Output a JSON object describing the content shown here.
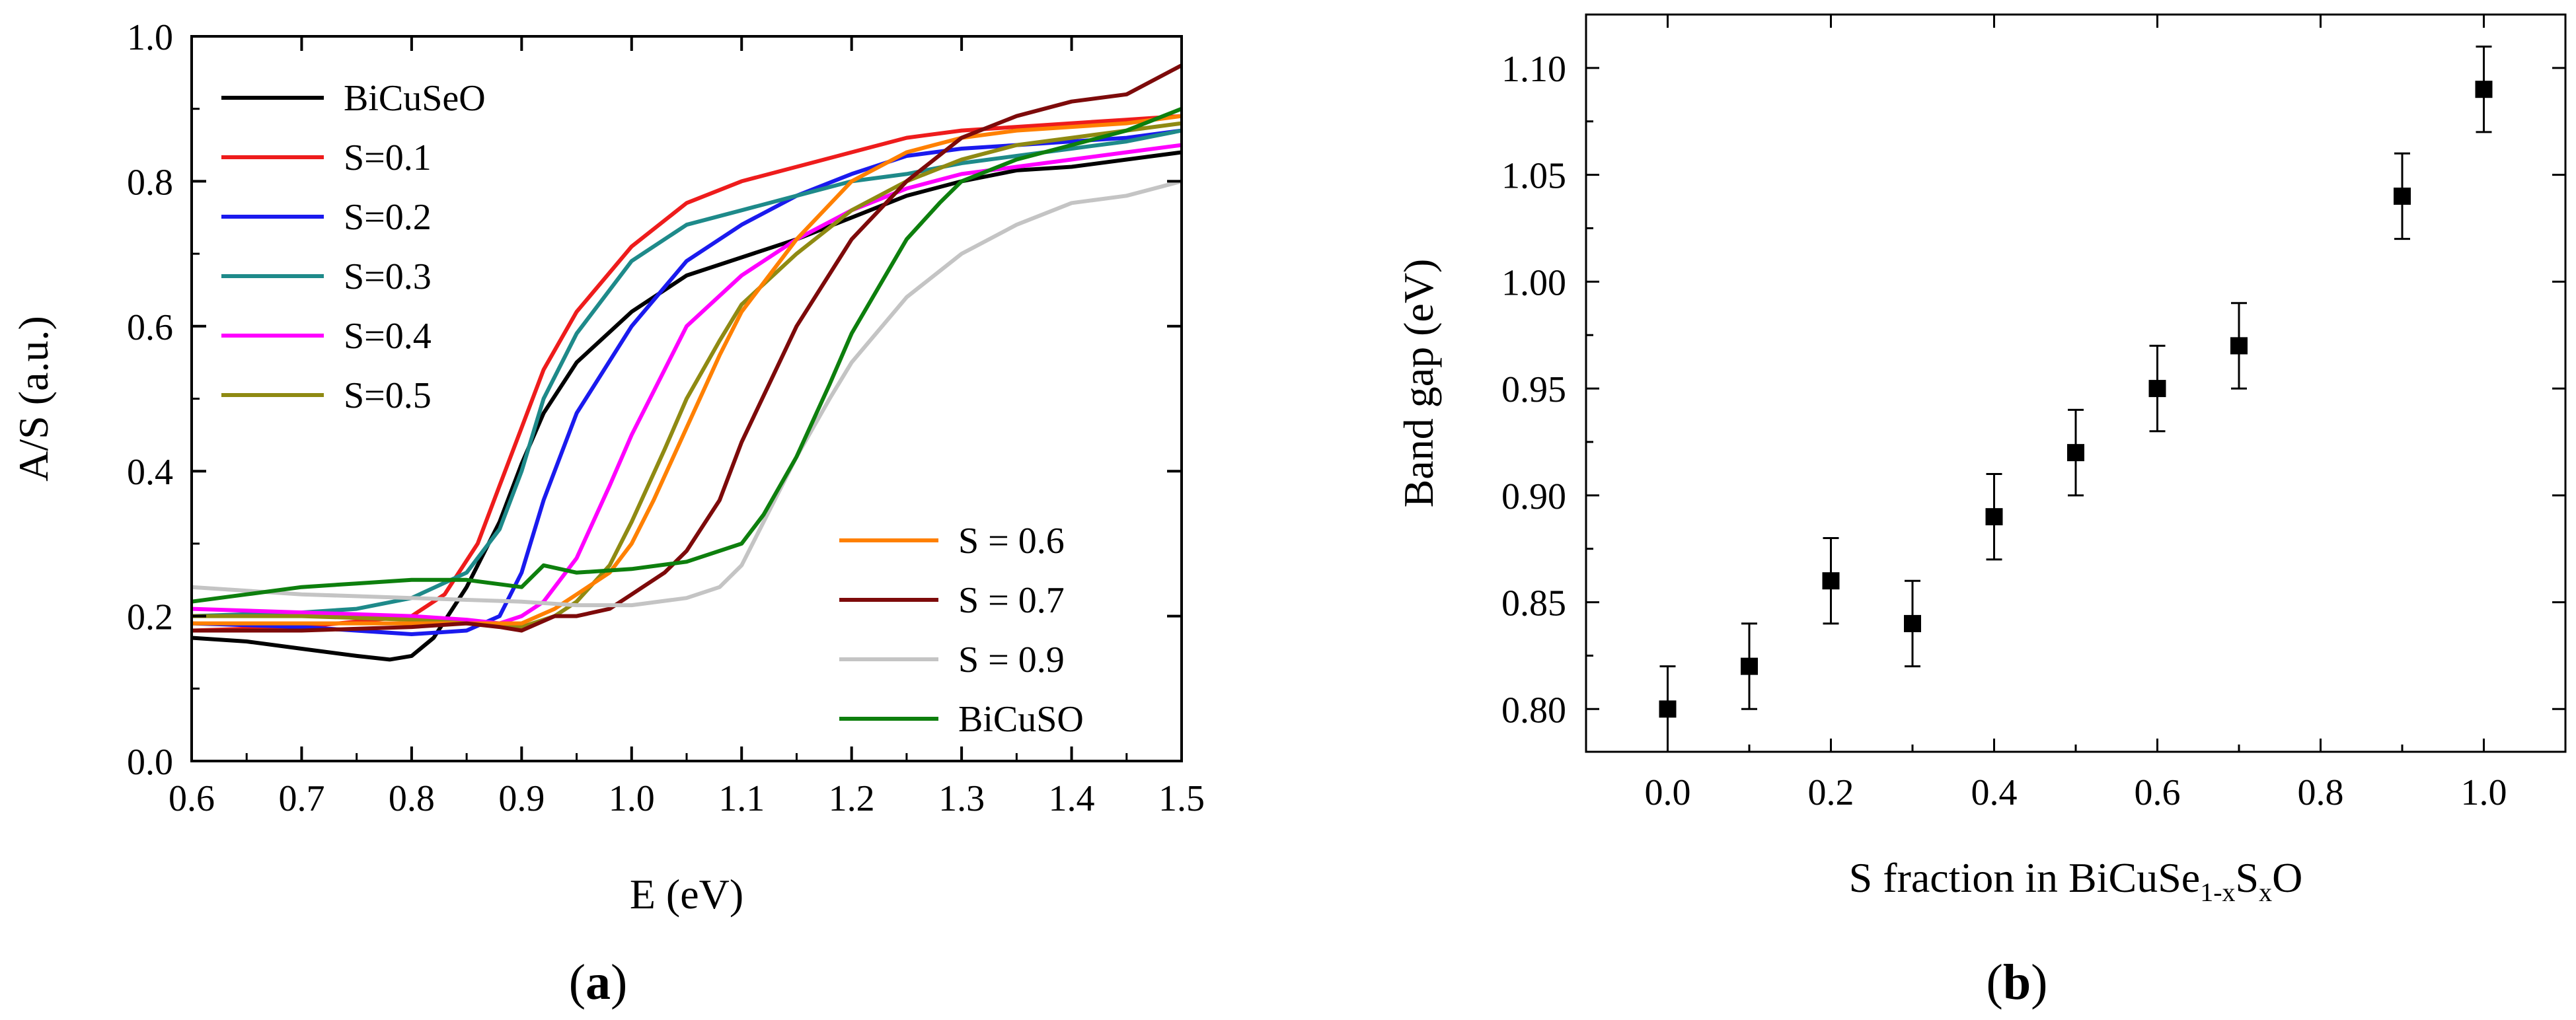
{
  "figure": {
    "panel_a_label": "a",
    "panel_b_label": "b"
  },
  "chart_data": [
    {
      "type": "line",
      "panel": "a",
      "xlabel": "E  (eV)",
      "ylabel": "A/S  (a.u.)",
      "xlim": [
        0.6,
        1.5
      ],
      "ylim": [
        0.0,
        1.0
      ],
      "xticks": [
        "0.6",
        "0.7",
        "0.8",
        "0.9",
        "1.0",
        "1.1",
        "1.2",
        "1.3",
        "1.4",
        "1.5"
      ],
      "yticks": [
        "0.0",
        "0.2",
        "0.4",
        "0.6",
        "0.8",
        "1.0"
      ],
      "legend_top_left": [
        "BiCuSeO",
        "S=0.1",
        "S=0.2",
        "S=0.3",
        "S=0.4",
        "S=0.5"
      ],
      "legend_bottom_right": [
        "S = 0.6",
        "S = 0.7",
        "S = 0.9",
        "BiCuSO"
      ],
      "series": [
        {
          "name": "BiCuSeO",
          "color": "#000000",
          "x": [
            0.6,
            0.65,
            0.7,
            0.75,
            0.78,
            0.8,
            0.82,
            0.85,
            0.88,
            0.9,
            0.92,
            0.95,
            1.0,
            1.05,
            1.1,
            1.15,
            1.2,
            1.25,
            1.3,
            1.35,
            1.4,
            1.45,
            1.5
          ],
          "y": [
            0.17,
            0.165,
            0.155,
            0.145,
            0.14,
            0.145,
            0.17,
            0.24,
            0.33,
            0.41,
            0.48,
            0.55,
            0.62,
            0.67,
            0.695,
            0.72,
            0.75,
            0.78,
            0.8,
            0.815,
            0.82,
            0.83,
            0.84
          ]
        },
        {
          "name": "S=0.1",
          "color": "#ee1c1c",
          "x": [
            0.6,
            0.7,
            0.8,
            0.83,
            0.86,
            0.88,
            0.9,
            0.92,
            0.95,
            1.0,
            1.05,
            1.1,
            1.15,
            1.2,
            1.25,
            1.3,
            1.35,
            1.4,
            1.45,
            1.5
          ],
          "y": [
            0.18,
            0.185,
            0.2,
            0.23,
            0.3,
            0.38,
            0.46,
            0.54,
            0.62,
            0.71,
            0.77,
            0.8,
            0.82,
            0.84,
            0.86,
            0.87,
            0.875,
            0.88,
            0.885,
            0.89
          ]
        },
        {
          "name": "S=0.2",
          "color": "#1a1aee",
          "x": [
            0.6,
            0.7,
            0.8,
            0.85,
            0.88,
            0.9,
            0.92,
            0.95,
            1.0,
            1.05,
            1.1,
            1.15,
            1.2,
            1.25,
            1.3,
            1.35,
            1.4,
            1.45,
            1.5
          ],
          "y": [
            0.19,
            0.185,
            0.175,
            0.18,
            0.2,
            0.26,
            0.36,
            0.48,
            0.6,
            0.69,
            0.74,
            0.78,
            0.81,
            0.835,
            0.845,
            0.85,
            0.855,
            0.86,
            0.87
          ]
        },
        {
          "name": "S=0.3",
          "color": "#1e8a8a",
          "x": [
            0.6,
            0.7,
            0.75,
            0.8,
            0.85,
            0.88,
            0.9,
            0.92,
            0.95,
            1.0,
            1.05,
            1.1,
            1.15,
            1.2,
            1.25,
            1.3,
            1.35,
            1.4,
            1.45,
            1.5
          ],
          "y": [
            0.2,
            0.205,
            0.21,
            0.225,
            0.26,
            0.32,
            0.4,
            0.5,
            0.59,
            0.69,
            0.74,
            0.76,
            0.78,
            0.8,
            0.81,
            0.825,
            0.835,
            0.845,
            0.855,
            0.87
          ]
        },
        {
          "name": "S=0.4",
          "color": "#ff00ff",
          "x": [
            0.6,
            0.7,
            0.8,
            0.85,
            0.88,
            0.9,
            0.92,
            0.95,
            0.98,
            1.0,
            1.03,
            1.05,
            1.1,
            1.15,
            1.2,
            1.25,
            1.3,
            1.35,
            1.4,
            1.45,
            1.5
          ],
          "y": [
            0.21,
            0.205,
            0.2,
            0.195,
            0.19,
            0.2,
            0.22,
            0.28,
            0.38,
            0.45,
            0.54,
            0.6,
            0.67,
            0.72,
            0.76,
            0.79,
            0.81,
            0.82,
            0.83,
            0.84,
            0.85
          ]
        },
        {
          "name": "S=0.5",
          "color": "#8f8a12",
          "x": [
            0.6,
            0.7,
            0.8,
            0.85,
            0.9,
            0.93,
            0.95,
            0.98,
            1.0,
            1.03,
            1.05,
            1.08,
            1.1,
            1.15,
            1.2,
            1.25,
            1.3,
            1.35,
            1.4,
            1.45,
            1.5
          ],
          "y": [
            0.2,
            0.2,
            0.195,
            0.19,
            0.185,
            0.2,
            0.22,
            0.27,
            0.33,
            0.43,
            0.5,
            0.58,
            0.63,
            0.7,
            0.76,
            0.8,
            0.83,
            0.85,
            0.86,
            0.87,
            0.88
          ]
        },
        {
          "name": "S = 0.6",
          "color": "#ff8000",
          "x": [
            0.6,
            0.7,
            0.8,
            0.85,
            0.9,
            0.93,
            0.95,
            0.98,
            1.0,
            1.02,
            1.05,
            1.08,
            1.1,
            1.15,
            1.2,
            1.25,
            1.3,
            1.35,
            1.4,
            1.45,
            1.5
          ],
          "y": [
            0.19,
            0.19,
            0.19,
            0.19,
            0.19,
            0.21,
            0.23,
            0.26,
            0.3,
            0.36,
            0.46,
            0.56,
            0.62,
            0.72,
            0.8,
            0.84,
            0.86,
            0.87,
            0.875,
            0.88,
            0.89
          ]
        },
        {
          "name": "S = 0.7",
          "color": "#7d0a0a",
          "x": [
            0.6,
            0.7,
            0.8,
            0.85,
            0.88,
            0.9,
            0.93,
            0.95,
            0.98,
            1.0,
            1.03,
            1.05,
            1.08,
            1.1,
            1.15,
            1.2,
            1.25,
            1.3,
            1.35,
            1.4,
            1.45,
            1.5
          ],
          "y": [
            0.18,
            0.18,
            0.185,
            0.19,
            0.185,
            0.18,
            0.2,
            0.2,
            0.21,
            0.23,
            0.26,
            0.29,
            0.36,
            0.44,
            0.6,
            0.72,
            0.8,
            0.86,
            0.89,
            0.91,
            0.92,
            0.96
          ]
        },
        {
          "name": "S = 0.9",
          "color": "#c4c4c4",
          "x": [
            0.6,
            0.7,
            0.8,
            0.9,
            0.95,
            1.0,
            1.05,
            1.08,
            1.1,
            1.12,
            1.15,
            1.18,
            1.2,
            1.25,
            1.3,
            1.35,
            1.4,
            1.45,
            1.5
          ],
          "y": [
            0.24,
            0.23,
            0.225,
            0.22,
            0.215,
            0.215,
            0.225,
            0.24,
            0.27,
            0.33,
            0.42,
            0.5,
            0.55,
            0.64,
            0.7,
            0.74,
            0.77,
            0.78,
            0.8
          ]
        },
        {
          "name": "BiCuSO",
          "color": "#0d7f0d",
          "x": [
            0.6,
            0.65,
            0.7,
            0.75,
            0.8,
            0.85,
            0.9,
            0.92,
            0.95,
            1.0,
            1.05,
            1.1,
            1.12,
            1.15,
            1.18,
            1.2,
            1.25,
            1.28,
            1.3,
            1.35,
            1.4,
            1.45,
            1.5
          ],
          "y": [
            0.22,
            0.23,
            0.24,
            0.245,
            0.25,
            0.25,
            0.24,
            0.27,
            0.26,
            0.265,
            0.275,
            0.3,
            0.34,
            0.42,
            0.52,
            0.59,
            0.72,
            0.77,
            0.8,
            0.83,
            0.85,
            0.87,
            0.9
          ]
        }
      ]
    },
    {
      "type": "scatter",
      "panel": "b",
      "xlabel_main": "S fraction in BiCuSe",
      "xlabel_sub1": "1-x",
      "xlabel_mid": "S",
      "xlabel_sub2": "x",
      "xlabel_end": "O",
      "ylabel": "Band gap  (eV)",
      "xlim": [
        -0.1,
        1.1
      ],
      "ylim": [
        0.78,
        1.125
      ],
      "xticks": [
        "0.0",
        "0.2",
        "0.4",
        "0.6",
        "0.8",
        "1.0"
      ],
      "yticks": [
        "0.80",
        "0.85",
        "0.90",
        "0.95",
        "1.00",
        "1.05",
        "1.10"
      ],
      "x": [
        0.0,
        0.1,
        0.2,
        0.3,
        0.4,
        0.5,
        0.6,
        0.7,
        0.9,
        1.0
      ],
      "y": [
        0.8,
        0.82,
        0.86,
        0.84,
        0.89,
        0.92,
        0.95,
        0.97,
        1.04,
        1.09
      ],
      "yerr": [
        0.02,
        0.02,
        0.02,
        0.02,
        0.02,
        0.02,
        0.02,
        0.02,
        0.02,
        0.02
      ],
      "marker_color": "#000000"
    }
  ]
}
